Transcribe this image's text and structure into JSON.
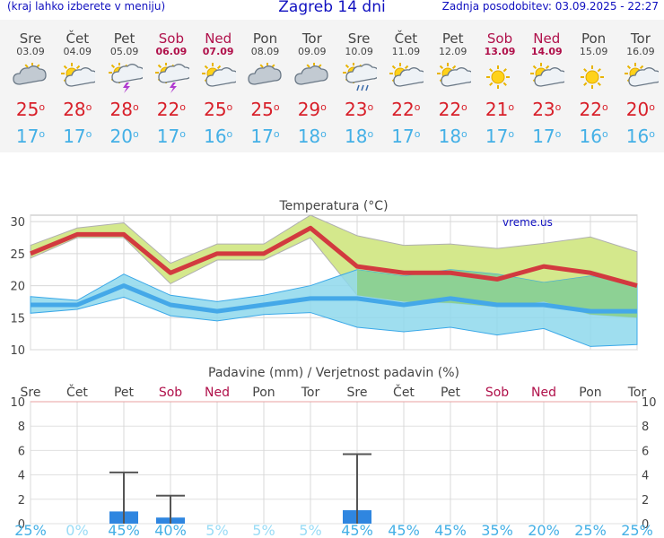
{
  "header": {
    "left_note": "(kraj lahko izberete v meniju)",
    "title": "Zagreb 14 dni",
    "updated": "Zadnja posodobitev: 03.09.2025 - 22:27"
  },
  "days": [
    {
      "name": "Sre",
      "date": "03.09",
      "weekend": false,
      "icon": "partly-cloudy-icon",
      "tmax": "25",
      "tmin": "17"
    },
    {
      "name": "Čet",
      "date": "04.09",
      "weekend": false,
      "icon": "sun-cloud-icon",
      "tmax": "28",
      "tmin": "17"
    },
    {
      "name": "Pet",
      "date": "05.09",
      "weekend": false,
      "icon": "thunderstorm-icon",
      "tmax": "28",
      "tmin": "20"
    },
    {
      "name": "Sob",
      "date": "06.09",
      "weekend": true,
      "icon": "thunderstorm-icon",
      "tmax": "22",
      "tmin": "17"
    },
    {
      "name": "Ned",
      "date": "07.09",
      "weekend": true,
      "icon": "sun-cloud-icon",
      "tmax": "25",
      "tmin": "16"
    },
    {
      "name": "Pon",
      "date": "08.09",
      "weekend": false,
      "icon": "partly-cloudy-icon",
      "tmax": "25",
      "tmin": "17"
    },
    {
      "name": "Tor",
      "date": "09.09",
      "weekend": false,
      "icon": "partly-cloudy-icon",
      "tmax": "29",
      "tmin": "18"
    },
    {
      "name": "Sre",
      "date": "10.09",
      "weekend": false,
      "icon": "rain-icon",
      "tmax": "23",
      "tmin": "18"
    },
    {
      "name": "Čet",
      "date": "11.09",
      "weekend": false,
      "icon": "sun-cloud-icon",
      "tmax": "22",
      "tmin": "17"
    },
    {
      "name": "Pet",
      "date": "12.09",
      "weekend": false,
      "icon": "sun-cloud-icon",
      "tmax": "22",
      "tmin": "18"
    },
    {
      "name": "Sob",
      "date": "13.09",
      "weekend": true,
      "icon": "sun-icon",
      "tmax": "21",
      "tmin": "17"
    },
    {
      "name": "Ned",
      "date": "14.09",
      "weekend": true,
      "icon": "sun-cloud-icon",
      "tmax": "23",
      "tmin": "17"
    },
    {
      "name": "Pon",
      "date": "15.09",
      "weekend": false,
      "icon": "sun-icon",
      "tmax": "22",
      "tmin": "16"
    },
    {
      "name": "Tor",
      "date": "16.09",
      "weekend": false,
      "icon": "sun-cloud-icon",
      "tmax": "20",
      "tmin": "16"
    }
  ],
  "colors": {
    "max_line": "#d23a3f",
    "min_line": "#44a8e8",
    "max_band": "#d4e88c",
    "min_band": "#8ed8ec",
    "overlap_band": "#8ccf8c",
    "bar": "#2f86e0",
    "weekend": "#b0104a",
    "prob": "#44b0e6",
    "prob_light": "#9adcf6",
    "grid": "#d8d8d8"
  },
  "chart_data": [
    {
      "type": "area",
      "title": "Temperatura (°C)",
      "watermark": "vreme.us",
      "ylim": [
        10,
        31
      ],
      "yticks": [
        10,
        15,
        20,
        25,
        30
      ],
      "x": [
        "03.09",
        "04.09",
        "05.09",
        "06.09",
        "07.09",
        "08.09",
        "09.09",
        "10.09",
        "11.09",
        "12.09",
        "13.09",
        "14.09",
        "15.09",
        "16.09"
      ],
      "series": [
        {
          "values": [
            25,
            28,
            28,
            22,
            25,
            25,
            29,
            23,
            22,
            22,
            21,
            23,
            22,
            20
          ]
        },
        {
          "values": [
            26.3,
            29,
            29.8,
            23.5,
            26.5,
            26.5,
            31,
            27.8,
            26.3,
            26.5,
            25.8,
            26.6,
            27.6,
            25.3
          ]
        },
        {
          "values": [
            24.3,
            27.5,
            27.5,
            20.3,
            24,
            24,
            27.5,
            18.5,
            17.5,
            17.3,
            16.7,
            17.5,
            15.5,
            15
          ]
        },
        {
          "values": [
            17,
            17,
            20,
            17,
            16,
            17,
            18,
            18,
            17,
            18,
            17,
            17,
            16,
            16
          ]
        },
        {
          "values": [
            18.3,
            17.7,
            21.8,
            18.5,
            17.5,
            18.5,
            20,
            22.5,
            21.5,
            22.5,
            21.8,
            20.5,
            21.5,
            20.2
          ]
        },
        {
          "values": [
            15.7,
            16.3,
            18.2,
            15.3,
            14.5,
            15.5,
            15.8,
            13.5,
            12.8,
            13.5,
            12.3,
            13.3,
            10.5,
            10.8
          ]
        }
      ]
    },
    {
      "type": "bar",
      "title": "Padavine (mm) / Verjetnost padavin (%)",
      "ylim": [
        0,
        10
      ],
      "yticks": [
        0,
        2,
        4,
        6,
        8,
        10
      ],
      "categories": [
        "Sre",
        "Čet",
        "Pet",
        "Sob",
        "Ned",
        "Pon",
        "Tor",
        "Sre",
        "Čet",
        "Pet",
        "Sob",
        "Ned",
        "Pon",
        "Tor"
      ],
      "values": [
        0,
        0,
        1.0,
        0.5,
        0,
        0,
        0,
        1.1,
        0,
        0,
        0,
        0,
        0,
        0
      ],
      "error_high": [
        0,
        0,
        4.2,
        2.3,
        0,
        0,
        0,
        5.7,
        0,
        0,
        0,
        0,
        0,
        0
      ],
      "probability": [
        "25%",
        "0%",
        "45%",
        "40%",
        "5%",
        "5%",
        "5%",
        "45%",
        "45%",
        "45%",
        "35%",
        "20%",
        "25%",
        "25%"
      ]
    }
  ]
}
